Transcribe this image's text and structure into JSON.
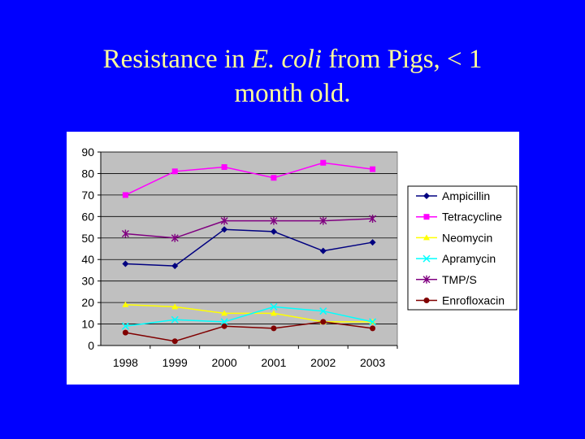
{
  "slide": {
    "title_part1": "Resistance in ",
    "title_italic": "E. coli",
    "title_part2": " from Pigs, < 1",
    "title_line2": "month old."
  },
  "chart_data": {
    "type": "line",
    "categories": [
      "1998",
      "1999",
      "2000",
      "2001",
      "2002",
      "2003"
    ],
    "ylim": [
      0,
      90
    ],
    "yticks": [
      0,
      10,
      20,
      30,
      40,
      50,
      60,
      70,
      80,
      90
    ],
    "grid": "horizontal",
    "legend": "right",
    "plot_background": "#c0c0c0",
    "series": [
      {
        "name": "Ampicillin",
        "color": "#000080",
        "marker": "diamond",
        "values": [
          38,
          37,
          54,
          53,
          44,
          48
        ]
      },
      {
        "name": "Tetracycline",
        "color": "#ff00ff",
        "marker": "square",
        "values": [
          70,
          81,
          83,
          78,
          85,
          82
        ]
      },
      {
        "name": "Neomycin",
        "color": "#ffff00",
        "marker": "triangle",
        "values": [
          19,
          18,
          15,
          15,
          11,
          11
        ]
      },
      {
        "name": "Apramycin",
        "color": "#00ffff",
        "marker": "x",
        "values": [
          9,
          12,
          11,
          18,
          16,
          11
        ]
      },
      {
        "name": "TMP/S",
        "color": "#800080",
        "marker": "star",
        "values": [
          52,
          50,
          58,
          58,
          58,
          59
        ]
      },
      {
        "name": "Enrofloxacin",
        "color": "#800000",
        "marker": "circle",
        "values": [
          6,
          2,
          9,
          8,
          11,
          8
        ]
      }
    ]
  }
}
